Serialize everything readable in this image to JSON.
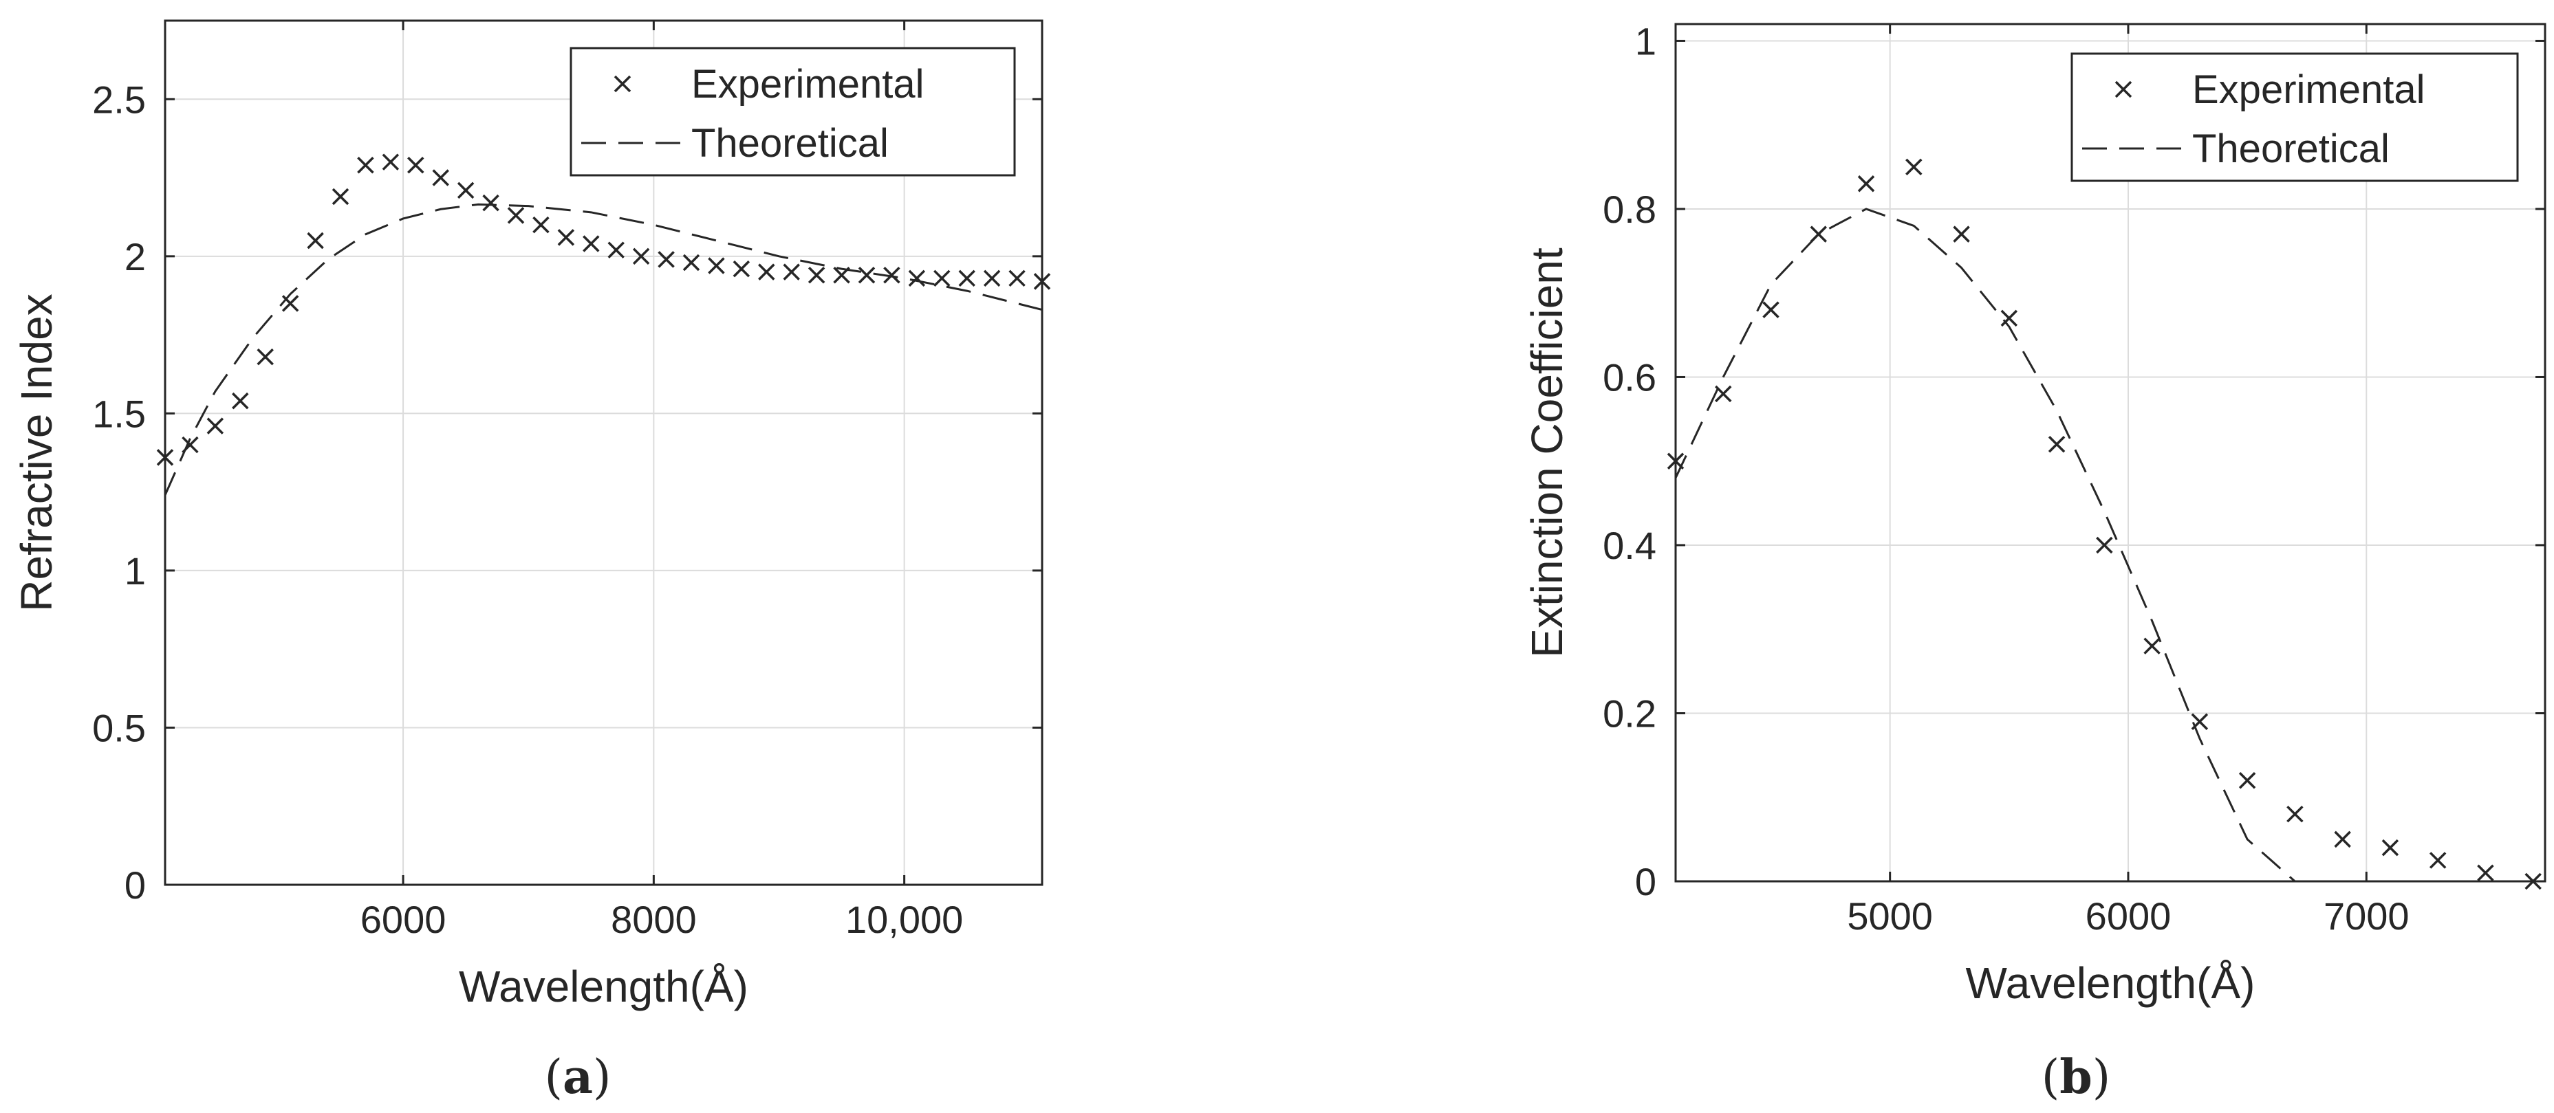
{
  "chart_data": [
    {
      "type": "scatter",
      "panel_label": {
        "open": "(",
        "letter": "a",
        "close": ")"
      },
      "xlabel": "Wavelength(Å)",
      "ylabel": "Refractive Index",
      "xlim": [
        4100,
        11100
      ],
      "ylim": [
        0,
        2.75
      ],
      "xticks": [
        6000,
        8000,
        10000
      ],
      "xtick_labels": [
        "6000",
        "8000",
        "10,000"
      ],
      "yticks": [
        0,
        0.5,
        1,
        1.5,
        2,
        2.5
      ],
      "ytick_labels": [
        "0",
        "0.5",
        "1",
        "1.5",
        "2",
        "2.5"
      ],
      "grid": true,
      "legend_position": "top-right",
      "series": [
        {
          "name": "Experimental",
          "style": "x-markers",
          "x": [
            4100,
            4300,
            4500,
            4700,
            4900,
            5100,
            5300,
            5500,
            5700,
            5900,
            6100,
            6300,
            6500,
            6700,
            6900,
            7100,
            7300,
            7500,
            7700,
            7900,
            8100,
            8300,
            8500,
            8700,
            8900,
            9100,
            9300,
            9500,
            9700,
            9900,
            10100,
            10300,
            10500,
            10700,
            10900,
            11100
          ],
          "y": [
            1.36,
            1.4,
            1.46,
            1.54,
            1.68,
            1.85,
            2.05,
            2.19,
            2.29,
            2.3,
            2.29,
            2.25,
            2.21,
            2.17,
            2.13,
            2.1,
            2.06,
            2.04,
            2.02,
            2.0,
            1.99,
            1.98,
            1.97,
            1.96,
            1.95,
            1.95,
            1.94,
            1.94,
            1.94,
            1.94,
            1.93,
            1.93,
            1.93,
            1.93,
            1.93,
            1.92
          ]
        },
        {
          "name": "Theoretical",
          "style": "dashed-line",
          "x": [
            4100,
            4300,
            4500,
            4800,
            5100,
            5400,
            5700,
            6000,
            6300,
            6600,
            7000,
            7500,
            8000,
            8500,
            9000,
            9500,
            10000,
            10500,
            11100
          ],
          "y": [
            1.24,
            1.42,
            1.57,
            1.74,
            1.88,
            1.99,
            2.07,
            2.12,
            2.15,
            2.165,
            2.16,
            2.14,
            2.1,
            2.05,
            2.0,
            1.96,
            1.93,
            1.89,
            1.83
          ]
        }
      ]
    },
    {
      "type": "scatter",
      "panel_label": {
        "open": "(",
        "letter": "b",
        "close": ")"
      },
      "xlabel": "Wavelength(Å)",
      "ylabel": "Extinction Coefficient",
      "xlim": [
        4100,
        7750
      ],
      "ylim": [
        0,
        1.02
      ],
      "xticks": [
        5000,
        6000,
        7000
      ],
      "xtick_labels": [
        "5000",
        "6000",
        "7000"
      ],
      "yticks": [
        0,
        0.2,
        0.4,
        0.6,
        0.8,
        1
      ],
      "ytick_labels": [
        "0",
        "0.2",
        "0.4",
        "0.6",
        "0.8",
        "1"
      ],
      "grid": true,
      "legend_position": "top-right",
      "series": [
        {
          "name": "Experimental",
          "style": "x-markers",
          "x": [
            4100,
            4300,
            4500,
            4700,
            4900,
            5100,
            5300,
            5500,
            5700,
            5900,
            6100,
            6300,
            6500,
            6700,
            6900,
            7100,
            7300,
            7500,
            7700
          ],
          "y": [
            0.5,
            0.58,
            0.68,
            0.77,
            0.83,
            0.85,
            0.77,
            0.67,
            0.52,
            0.4,
            0.28,
            0.19,
            0.12,
            0.08,
            0.05,
            0.04,
            0.025,
            0.01,
            0.0
          ]
        },
        {
          "name": "Theoretical",
          "style": "dashed-line",
          "x": [
            4100,
            4300,
            4500,
            4700,
            4900,
            5100,
            5300,
            5500,
            5700,
            5900,
            6100,
            6300,
            6500,
            6700,
            6900,
            7100,
            7300,
            7500,
            7700
          ],
          "y": [
            0.48,
            0.6,
            0.71,
            0.77,
            0.8,
            0.78,
            0.73,
            0.66,
            0.56,
            0.44,
            0.31,
            0.17,
            0.05,
            0.0,
            0.0,
            0.0,
            0.0,
            0.0,
            0.0
          ]
        }
      ]
    }
  ]
}
